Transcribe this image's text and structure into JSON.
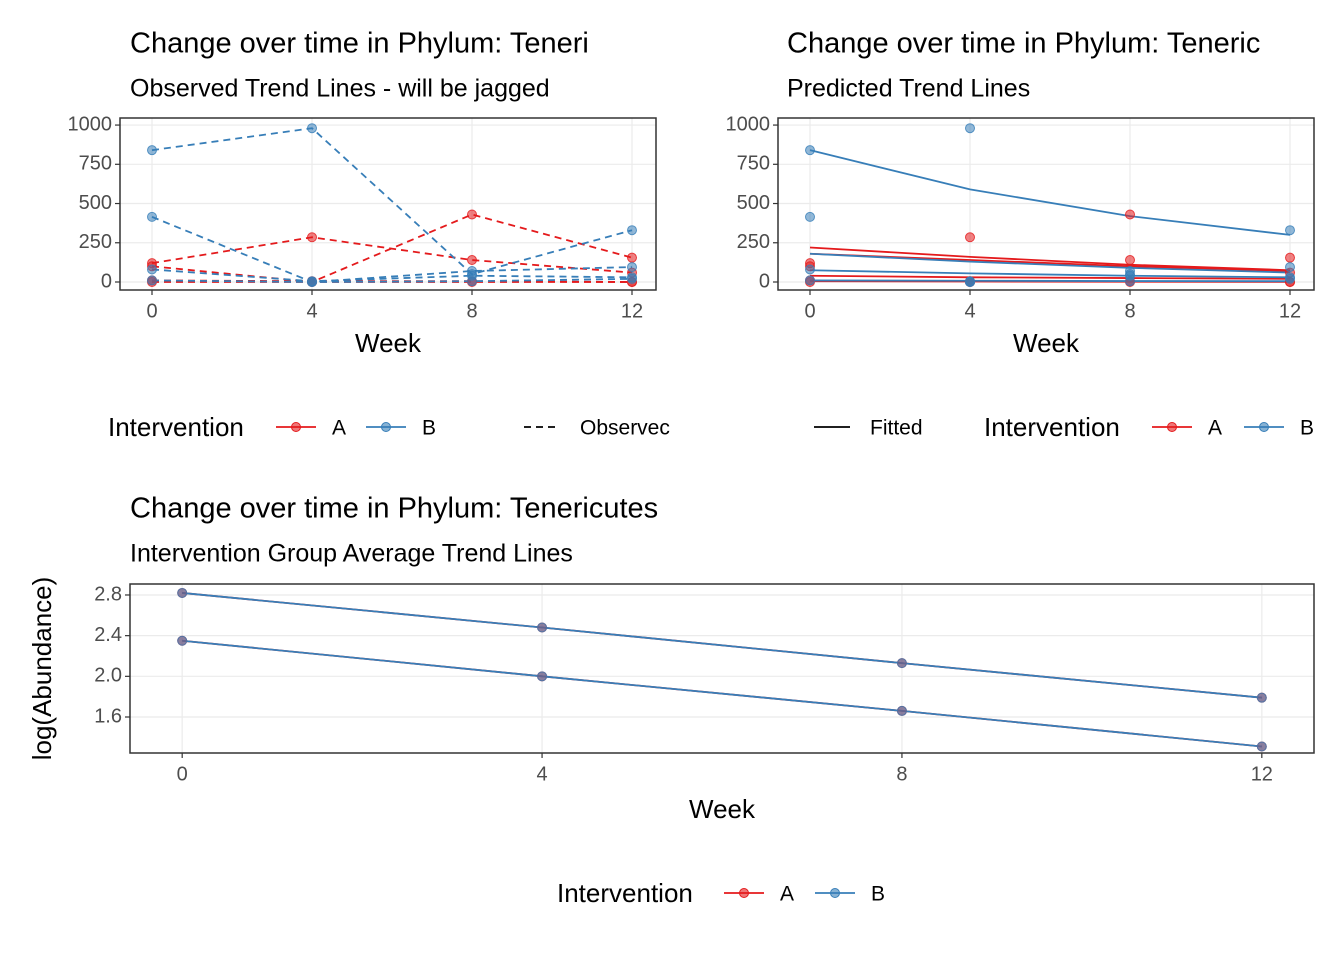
{
  "chart_data": [
    {
      "type": "line",
      "title": "Change over time in Phylum: Teneri",
      "subtitle": "Observed Trend Lines - will be jagged",
      "x_label": "Week",
      "x": [
        0,
        4,
        8,
        12
      ],
      "xlim": [
        -0.8,
        12.6
      ],
      "xticks": [
        0,
        4,
        8,
        12
      ],
      "ylim": [
        -51,
        1045
      ],
      "yticks": [
        0,
        250,
        500,
        750,
        1000
      ],
      "grid": true,
      "linetype": "dashed",
      "legend_title": "Intervention",
      "linetype_label": "Observec",
      "series": [
        {
          "name": "A",
          "color": "#E41A1C",
          "values": [
            120,
            285,
            140,
            60
          ]
        },
        {
          "name": "A",
          "color": "#E41A1C",
          "values": [
            100,
            0,
            430,
            155
          ]
        },
        {
          "name": "A",
          "color": "#E41A1C",
          "values": [
            10,
            5,
            5,
            0
          ]
        },
        {
          "name": "A",
          "color": "#E41A1C",
          "values": [
            0,
            0,
            0,
            0
          ]
        },
        {
          "name": "B",
          "color": "#377EB8",
          "values": [
            840,
            980,
            50,
            330
          ]
        },
        {
          "name": "B",
          "color": "#377EB8",
          "values": [
            415,
            0,
            70,
            95
          ]
        },
        {
          "name": "B",
          "color": "#377EB8",
          "values": [
            80,
            5,
            40,
            30
          ]
        },
        {
          "name": "B",
          "color": "#377EB8",
          "values": [
            10,
            0,
            5,
            20
          ]
        }
      ]
    },
    {
      "type": "line",
      "title": "Change over time in Phylum: Teneric",
      "subtitle": "Predicted Trend Lines",
      "x_label": "Week",
      "x": [
        0,
        4,
        8,
        12
      ],
      "xlim": [
        -0.8,
        12.6
      ],
      "xticks": [
        0,
        4,
        8,
        12
      ],
      "ylim": [
        -51,
        1045
      ],
      "yticks": [
        0,
        250,
        500,
        750,
        1000
      ],
      "grid": true,
      "linetype": "solid",
      "legend_title": "Intervention",
      "linetype_label": "Fitted",
      "series": [
        {
          "name": "A",
          "color": "#E41A1C",
          "values": [
            120,
            285,
            140,
            60
          ],
          "fitted": [
            220,
            160,
            110,
            75
          ]
        },
        {
          "name": "A",
          "color": "#E41A1C",
          "values": [
            100,
            0,
            430,
            155
          ],
          "fitted": [
            180,
            140,
            100,
            70
          ]
        },
        {
          "name": "A",
          "color": "#E41A1C",
          "values": [
            10,
            5,
            5,
            0
          ],
          "fitted": [
            40,
            30,
            25,
            20
          ]
        },
        {
          "name": "A",
          "color": "#E41A1C",
          "values": [
            0,
            0,
            0,
            0
          ],
          "fitted": [
            5,
            3,
            2,
            1
          ]
        },
        {
          "name": "B",
          "color": "#377EB8",
          "values": [
            840,
            980,
            50,
            330
          ],
          "fitted": [
            840,
            590,
            420,
            300
          ]
        },
        {
          "name": "B",
          "color": "#377EB8",
          "values": [
            415,
            0,
            70,
            95
          ],
          "fitted": [
            180,
            130,
            90,
            60
          ]
        },
        {
          "name": "B",
          "color": "#377EB8",
          "values": [
            80,
            5,
            40,
            30
          ],
          "fitted": [
            75,
            55,
            40,
            30
          ]
        },
        {
          "name": "B",
          "color": "#377EB8",
          "values": [
            10,
            0,
            5,
            20
          ],
          "fitted": [
            10,
            8,
            6,
            5
          ]
        }
      ]
    },
    {
      "type": "line",
      "title": "Change over time in Phylum: Tenericutes",
      "subtitle": "Intervention Group Average Trend Lines",
      "x_label": "Week",
      "y_label": "log(Abundance)",
      "x": [
        0,
        4,
        8,
        12
      ],
      "xlim": [
        -0.58,
        12.58
      ],
      "xticks": [
        0,
        4,
        8,
        12
      ],
      "ylim": [
        1.246,
        2.908
      ],
      "yticks": [
        1.6,
        {
          "value": 2,
          "label": "2.0"
        },
        2.4,
        2.8
      ],
      "grid": true,
      "linetype": "solid",
      "legend_title": "Intervention",
      "series": [
        {
          "name": "A",
          "color": "#E41A1C",
          "values": [
            2.82,
            2.48,
            2.13,
            1.79
          ]
        },
        {
          "name": "A",
          "color": "#E41A1C",
          "values": [
            2.35,
            2.0,
            1.66,
            1.31
          ]
        },
        {
          "name": "B",
          "color": "#377EB8",
          "values": [
            2.82,
            2.48,
            2.13,
            1.79
          ]
        },
        {
          "name": "B",
          "color": "#377EB8",
          "values": [
            2.35,
            2.0,
            1.66,
            1.31
          ]
        }
      ]
    }
  ]
}
